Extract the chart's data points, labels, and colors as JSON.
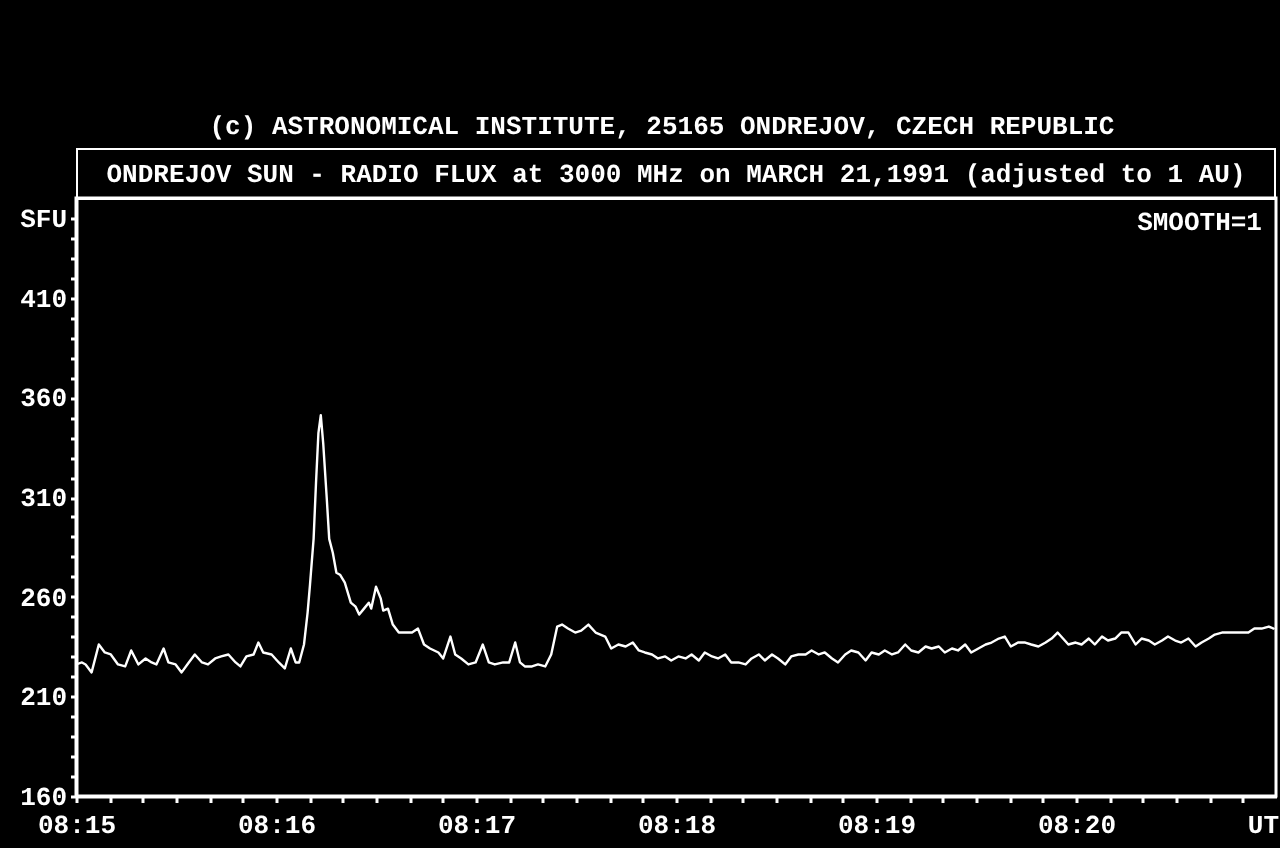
{
  "chart_data": {
    "type": "line",
    "title": "ONDREJOV SUN - RADIO FLUX at 3000 MHz on MARCH 21,1991 (adjusted to 1 AU)",
    "xlabel": "UT",
    "ylabel": "SFU",
    "annotations": [
      "(c) ASTRONOMICAL INSTITUTE, 25165 ONDREJOV, CZECH REPUBLIC",
      "SMOOTH=1"
    ],
    "x": [
      8.25,
      8.2505,
      8.2508,
      8.2513,
      8.2519,
      8.2524,
      8.2529,
      8.2535,
      8.2541,
      8.2546,
      8.2552,
      8.2558,
      8.2563,
      8.2567,
      8.2573,
      8.2577,
      8.2583,
      8.2588,
      8.2594,
      8.2599,
      8.2605,
      8.261,
      8.2616,
      8.2621,
      8.2627,
      8.2633,
      8.2637,
      8.2642,
      8.2648,
      8.2652,
      8.2656,
      8.2663,
      8.2669,
      8.2674,
      8.2679,
      8.2683,
      8.2686,
      8.269,
      8.2693,
      8.2695,
      8.2698,
      8.27,
      8.2702,
      8.2704,
      8.2706,
      8.2709,
      8.2711,
      8.2714,
      8.2717,
      8.272,
      8.2724,
      8.2729,
      8.2733,
      8.2736,
      8.274,
      8.2744,
      8.2746,
      8.275,
      8.2754,
      8.2756,
      8.276,
      8.2764,
      8.2769,
      8.2774,
      8.278,
      8.2785,
      8.279,
      8.2795,
      8.2802,
      8.2806,
      8.2812,
      8.2816,
      8.2821,
      8.2827,
      8.2833,
      8.2839,
      8.2844,
      8.2849,
      8.2856,
      8.2861,
      8.2866,
      8.287,
      8.2874,
      8.288,
      8.2885,
      8.2891,
      8.2896,
      8.2901,
      8.2905,
      8.291,
      8.2916,
      8.2921,
      8.2927,
      8.2933,
      8.2941,
      8.2946,
      8.2952,
      8.2958,
      8.2964,
      8.2969,
      8.2974,
      8.298,
      8.2985,
      8.2991,
      8.2996,
      8.3002,
      8.3008,
      8.3013,
      8.3019,
      8.3024,
      8.303,
      8.3035,
      8.3041,
      8.3046,
      8.3052,
      8.3058,
      8.3063,
      8.3069,
      8.3074,
      8.308,
      8.3085,
      8.3091,
      8.3096,
      8.3102,
      8.3108,
      8.3113,
      8.3119,
      8.3124,
      8.313,
      8.3135,
      8.3141,
      8.3146,
      8.3152,
      8.3158,
      8.3163,
      8.3169,
      8.3174,
      8.318,
      8.3185,
      8.3191,
      8.3196,
      8.3202,
      8.3208,
      8.3213,
      8.3219,
      8.3224,
      8.323,
      8.3235,
      8.3241,
      8.3246,
      8.3252,
      8.3258,
      8.3263,
      8.3269,
      8.3274,
      8.3279,
      8.3285,
      8.3291,
      8.3296,
      8.3302,
      8.3308,
      8.3313,
      8.3318,
      8.3321,
      8.3327,
      8.3333,
      8.3338,
      8.3344,
      8.3349,
      8.3355,
      8.336,
      8.3366,
      8.3371,
      8.3377,
      8.3383,
      8.3388,
      8.3394,
      8.3399,
      8.3405,
      8.341,
      8.3416,
      8.3421,
      8.3427,
      8.3433,
      8.3438,
      8.3444,
      8.3449,
      8.3455,
      8.346,
      8.3466,
      8.3471,
      8.3477,
      8.3482,
      8.3488,
      8.3494,
      8.3498
    ],
    "values": [
      226,
      227,
      226,
      222,
      236,
      232,
      231,
      226,
      225,
      233,
      226,
      229,
      227,
      226,
      234,
      227,
      226,
      222,
      227,
      231,
      227,
      226,
      229,
      230,
      231,
      227,
      225,
      230,
      231,
      237,
      232,
      231,
      227,
      224,
      234,
      227,
      227,
      236,
      252,
      266,
      289,
      317,
      342,
      351,
      337,
      309,
      289,
      282,
      272,
      271,
      267,
      257,
      255,
      251,
      254,
      257,
      254,
      265,
      259,
      253,
      254,
      246,
      242,
      242,
      242,
      244,
      236,
      234,
      232,
      229,
      240,
      231,
      229,
      226,
      227,
      236,
      227,
      226,
      227,
      227,
      237,
      227,
      225,
      225,
      226,
      225,
      231,
      245,
      246,
      244,
      242,
      243,
      246,
      242,
      240,
      234,
      236,
      235,
      237,
      233,
      232,
      231,
      229,
      230,
      228,
      230,
      229,
      231,
      228,
      232,
      230,
      229,
      231,
      227,
      227,
      226,
      229,
      231,
      228,
      231,
      229,
      226,
      230,
      231,
      231,
      233,
      231,
      232,
      229,
      227,
      231,
      233,
      232,
      228,
      232,
      231,
      233,
      231,
      232,
      236,
      233,
      232,
      235,
      234,
      235,
      232,
      234,
      233,
      236,
      232,
      234,
      236,
      237,
      239,
      240,
      235,
      237,
      237,
      236,
      235,
      237,
      239,
      242,
      240,
      236,
      237,
      236,
      239,
      236,
      240,
      238,
      239,
      242,
      242,
      236,
      239,
      238,
      236,
      238,
      240,
      238,
      237,
      239,
      235,
      237,
      239,
      241,
      242,
      242,
      242,
      242,
      242,
      244,
      244,
      245,
      244
    ],
    "color": "#ffffff",
    "xlim": [
      8.25,
      8.35
    ],
    "ylim": [
      160,
      460
    ],
    "xticks": [
      {
        "value": 8.25,
        "label": "08:15"
      },
      {
        "value": 8.252778,
        "label": null
      },
      {
        "value": 8.255556,
        "label": null
      },
      {
        "value": 8.258333,
        "label": null
      },
      {
        "value": 8.261111,
        "label": null
      },
      {
        "value": 8.263889,
        "label": null
      },
      {
        "value": 8.266667,
        "label": "08:16"
      },
      {
        "value": 8.269444,
        "label": null
      },
      {
        "value": 8.272222,
        "label": null
      },
      {
        "value": 8.275,
        "label": null
      },
      {
        "value": 8.277778,
        "label": null
      },
      {
        "value": 8.280556,
        "label": null
      },
      {
        "value": 8.283333,
        "label": "08:17"
      },
      {
        "value": 8.286111,
        "label": null
      },
      {
        "value": 8.288889,
        "label": null
      },
      {
        "value": 8.291667,
        "label": null
      },
      {
        "value": 8.294444,
        "label": null
      },
      {
        "value": 8.297222,
        "label": null
      },
      {
        "value": 8.3,
        "label": "08:18"
      },
      {
        "value": 8.302778,
        "label": null
      },
      {
        "value": 8.305556,
        "label": null
      },
      {
        "value": 8.308333,
        "label": null
      },
      {
        "value": 8.311111,
        "label": null
      },
      {
        "value": 8.313889,
        "label": null
      },
      {
        "value": 8.316667,
        "label": "08:19"
      },
      {
        "value": 8.319444,
        "label": null
      },
      {
        "value": 8.322222,
        "label": null
      },
      {
        "value": 8.325,
        "label": null
      },
      {
        "value": 8.327778,
        "label": null
      },
      {
        "value": 8.330556,
        "label": null
      },
      {
        "value": 8.333333,
        "label": "08:20"
      },
      {
        "value": 8.336111,
        "label": null
      },
      {
        "value": 8.338889,
        "label": null
      },
      {
        "value": 8.341667,
        "label": null
      },
      {
        "value": 8.344444,
        "label": null
      },
      {
        "value": 8.347222,
        "label": null
      }
    ],
    "yticks": [
      160,
      {
        "value": 170,
        "label": null
      },
      {
        "value": 180,
        "label": null
      },
      {
        "value": 190,
        "label": null
      },
      {
        "value": 200,
        "label": null
      },
      210,
      {
        "value": 220,
        "label": null
      },
      {
        "value": 230,
        "label": null
      },
      {
        "value": 240,
        "label": null
      },
      {
        "value": 250,
        "label": null
      },
      260,
      {
        "value": 270,
        "label": null
      },
      {
        "value": 280,
        "label": null
      },
      {
        "value": 290,
        "label": null
      },
      {
        "value": 300,
        "label": null
      },
      310,
      {
        "value": 320,
        "label": null
      },
      {
        "value": 330,
        "label": null
      },
      {
        "value": 340,
        "label": null
      },
      {
        "value": 350,
        "label": null
      },
      360,
      {
        "value": 370,
        "label": null
      },
      {
        "value": 380,
        "label": null
      },
      {
        "value": 390,
        "label": null
      },
      {
        "value": 400,
        "label": null
      },
      410,
      {
        "value": 420,
        "label": null
      },
      {
        "value": 430,
        "label": null
      },
      {
        "value": 440,
        "label": null
      },
      {
        "value": 450,
        "label": null
      }
    ],
    "grid": false,
    "marker": "none",
    "line_style": "solid"
  }
}
